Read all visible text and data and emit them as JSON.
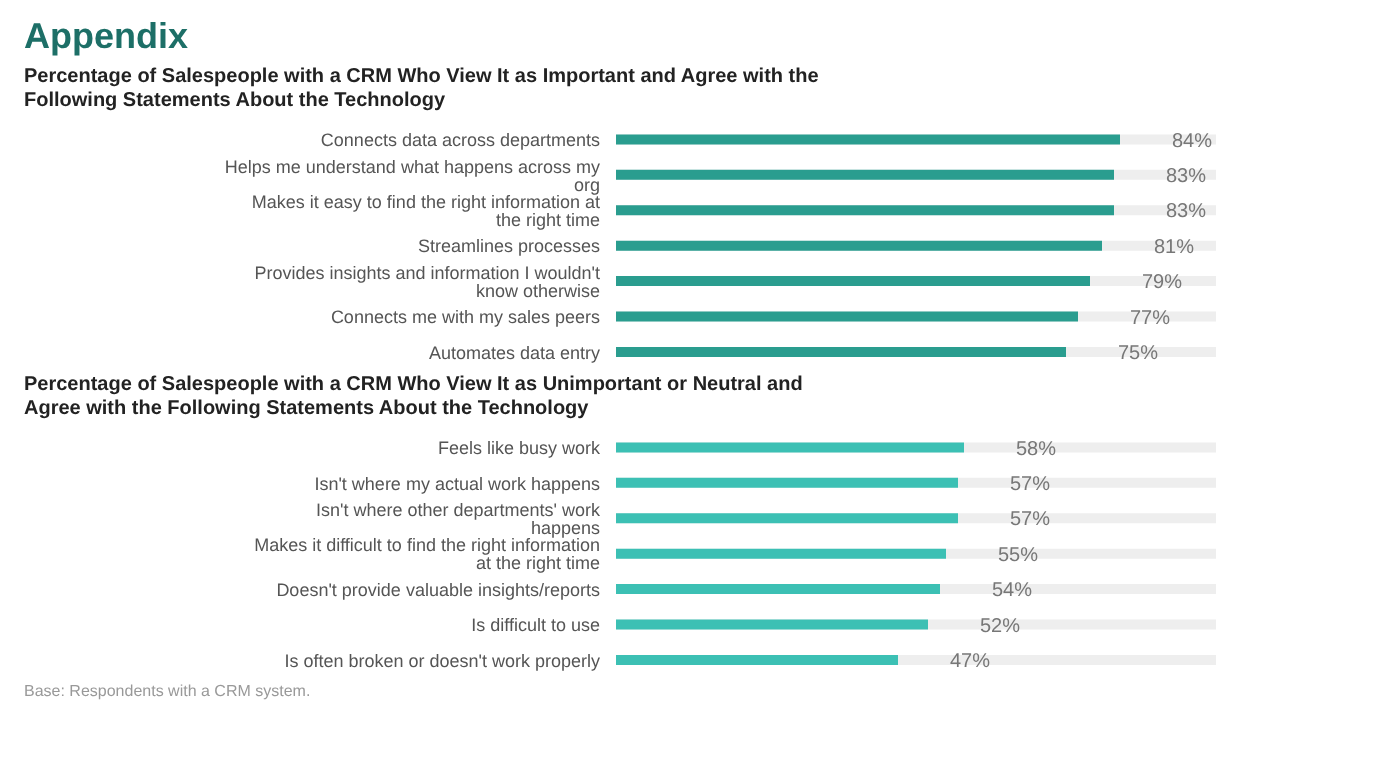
{
  "chart_data": [
    {
      "type": "bar",
      "orientation": "horizontal",
      "title": "Percentage of Salespeople with a CRM Who View It as Important and Agree with the Following Statements About the Technology",
      "annotations": [
        "Appendix"
      ],
      "categories": [
        "Connects data across departments",
        "Helps me understand what happens across my org",
        "Makes it easy to find the right information at the right time",
        "Streamlines processes",
        "Provides insights and information I wouldn't know otherwise",
        "Connects me with my sales peers",
        "Automates data entry"
      ],
      "values": [
        84,
        83,
        83,
        81,
        79,
        77,
        75
      ],
      "value_labels": [
        "84%",
        "83%",
        "83%",
        "81%",
        "79%",
        "77%",
        "75%"
      ],
      "color": "#2a9d8f",
      "xlim": [
        0,
        100
      ],
      "tick_labels": "y"
    },
    {
      "type": "bar",
      "orientation": "horizontal",
      "title": "Percentage of Salespeople with a CRM Who View It as Unimportant or Neutral and Agree with the Following Statements About the Technology",
      "annotations": [
        "Base: Respondents with a CRM system."
      ],
      "categories": [
        "Feels like busy work",
        "Isn't where my actual work happens",
        "Isn't where other departments' work happens",
        "Makes it difficult to find the right information at the right time",
        "Doesn't provide valuable insights/reports",
        "Is difficult to use",
        "Is often broken or doesn't work properly"
      ],
      "values": [
        58,
        57,
        57,
        55,
        54,
        52,
        47
      ],
      "value_labels": [
        "58%",
        "57%",
        "57%",
        "55%",
        "54%",
        "52%",
        "47%"
      ],
      "color": "#3cc0b4",
      "xlim": [
        0,
        100
      ],
      "tick_labels": "y"
    }
  ]
}
